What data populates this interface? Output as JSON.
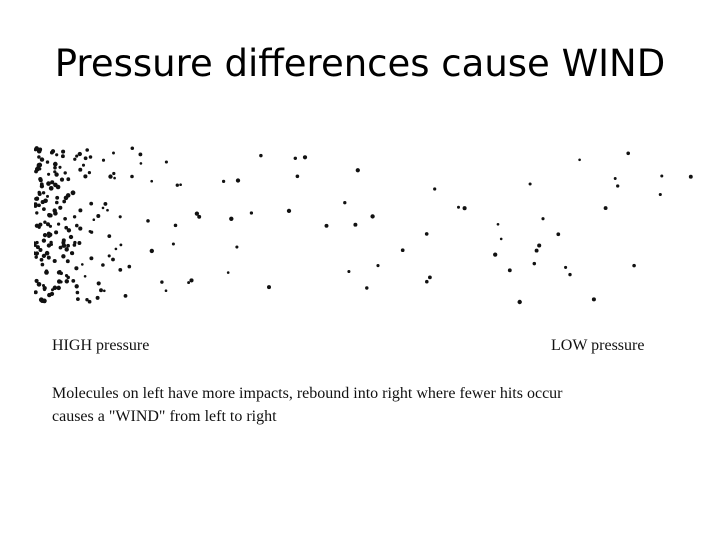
{
  "slide": {
    "title": "Pressure differences cause WIND"
  },
  "diagram": {
    "high_label": "HIGH pressure",
    "low_label": "LOW pressure",
    "caption_lines": [
      "Molecules on left have more impacts, rebound into right where fewer hits occur",
      "causes a \"WIND\" from left to right"
    ],
    "dot_color": "#111111"
  }
}
